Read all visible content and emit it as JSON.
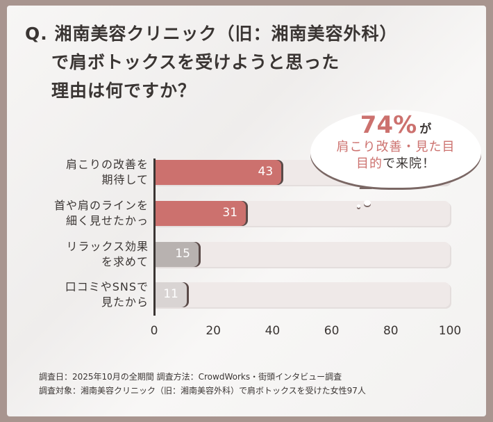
{
  "title": {
    "line1": "Q. 湘南美容クリニック（旧：湘南美容外科）",
    "line2": "で肩ボトックスを受けようと思った",
    "line3": "理由は何ですか？"
  },
  "callout": {
    "percent": "74%",
    "particle": "が",
    "line2": "肩こり改善・見た目",
    "line3_highlight": "目的",
    "line3_rest": "で来院！"
  },
  "chart_data": {
    "type": "bar",
    "orientation": "horizontal",
    "categories": [
      [
        "肩こりの改善を",
        "期待して"
      ],
      [
        "首や肩のラインを",
        "細く見せたかっ"
      ],
      [
        "リラックス効果",
        "を求めて"
      ],
      [
        "口コミやSNSで",
        "見たから"
      ]
    ],
    "values": [
      43,
      31,
      15,
      11
    ],
    "bar_colors": [
      "#cc716e",
      "#cc716e",
      "#b8b2b0",
      "#d9d4d3"
    ],
    "xlim": [
      0,
      100
    ],
    "xticks": [
      "0",
      "20",
      "40",
      "60",
      "80",
      "100"
    ]
  },
  "footer": {
    "line1": "調査日：2025年10月の全期間  調査方法：CrowdWorks・街頭インタビュー調査",
    "line2": "調査対象：湘南美容クリニック（旧：湘南美容外科）で肩ボトックスを受けた女性97人"
  }
}
